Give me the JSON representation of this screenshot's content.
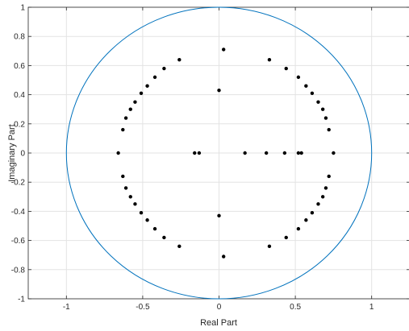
{
  "chart_data": {
    "type": "scatter",
    "title": "",
    "xlabel": "Real Part",
    "ylabel": "Imaginary Part",
    "xlim": [
      -1.25,
      1.25
    ],
    "ylim": [
      -1,
      1
    ],
    "xticks": [
      -1,
      -0.5,
      0,
      0.5,
      1
    ],
    "xtick_labels": [
      "-1",
      "-0.5",
      "0",
      "0.5",
      "1"
    ],
    "yticks": [
      -1,
      -0.8,
      -0.6,
      -0.4,
      -0.2,
      0,
      0.2,
      0.4,
      0.6,
      0.8,
      1
    ],
    "ytick_labels": [
      "-1",
      "-0.8",
      "-0.6",
      "-0.4",
      "-0.2",
      "0",
      "0.2",
      "0.4",
      "0.6",
      "0.8",
      "1"
    ],
    "grid": true,
    "unit_circle": {
      "center": [
        0,
        0
      ],
      "radius": 1,
      "color": "#0072BD"
    },
    "marker_color": "#000000",
    "points": [
      [
        -0.26,
        0.64
      ],
      [
        -0.36,
        0.58
      ],
      [
        -0.42,
        0.52
      ],
      [
        -0.47,
        0.46
      ],
      [
        -0.51,
        0.41
      ],
      [
        -0.55,
        0.35
      ],
      [
        -0.58,
        0.3
      ],
      [
        -0.61,
        0.24
      ],
      [
        -0.63,
        0.16
      ],
      [
        -0.66,
        0.0
      ],
      [
        -0.63,
        -0.16
      ],
      [
        -0.61,
        -0.24
      ],
      [
        -0.58,
        -0.3
      ],
      [
        -0.55,
        -0.35
      ],
      [
        -0.51,
        -0.41
      ],
      [
        -0.47,
        -0.46
      ],
      [
        -0.42,
        -0.52
      ],
      [
        -0.36,
        -0.58
      ],
      [
        -0.26,
        -0.64
      ],
      [
        0.03,
        0.71
      ],
      [
        0.03,
        -0.71
      ],
      [
        0.0,
        0.43
      ],
      [
        0.0,
        -0.43
      ],
      [
        -0.16,
        0.0
      ],
      [
        -0.13,
        0.0
      ],
      [
        0.17,
        0.0
      ],
      [
        0.31,
        0.0
      ],
      [
        0.43,
        0.0
      ],
      [
        0.52,
        0.0
      ],
      [
        0.54,
        0.0
      ],
      [
        0.33,
        0.64
      ],
      [
        0.44,
        0.58
      ],
      [
        0.52,
        0.52
      ],
      [
        0.57,
        0.46
      ],
      [
        0.61,
        0.41
      ],
      [
        0.65,
        0.35
      ],
      [
        0.68,
        0.3
      ],
      [
        0.7,
        0.24
      ],
      [
        0.72,
        0.16
      ],
      [
        0.75,
        0.0
      ],
      [
        0.72,
        -0.16
      ],
      [
        0.7,
        -0.24
      ],
      [
        0.68,
        -0.3
      ],
      [
        0.65,
        -0.35
      ],
      [
        0.61,
        -0.41
      ],
      [
        0.57,
        -0.46
      ],
      [
        0.52,
        -0.52
      ],
      [
        0.44,
        -0.58
      ],
      [
        0.33,
        -0.64
      ]
    ]
  }
}
